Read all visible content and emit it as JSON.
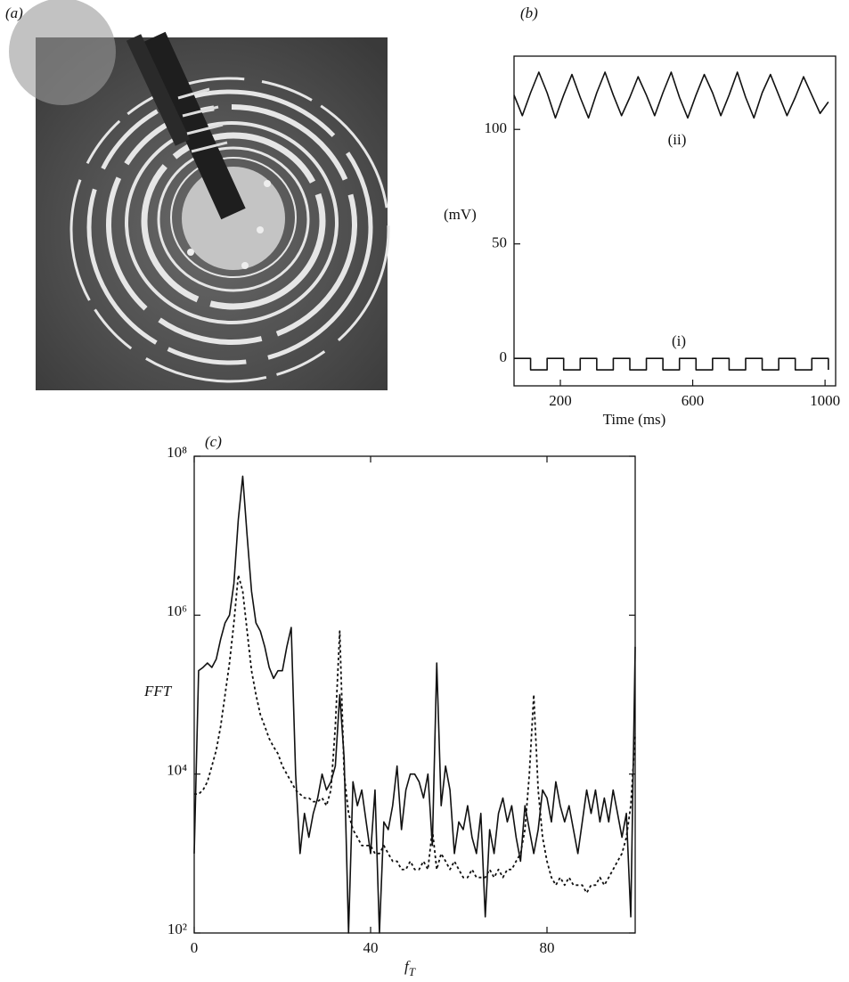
{
  "panel_a": {
    "label": "(a)"
  },
  "chart_data": [
    {
      "type": "line",
      "panel": "(b)",
      "ylabel": "(mV)",
      "xlabel": "Time (ms)",
      "xlim": [
        60,
        1032
      ],
      "ylim": [
        -12,
        132
      ],
      "xticks": [
        200,
        600,
        1000
      ],
      "yticks": [
        0,
        50,
        100
      ],
      "x": [
        60,
        85,
        110,
        135,
        160,
        185,
        210,
        235,
        260,
        285,
        310,
        335,
        360,
        385,
        410,
        435,
        460,
        485,
        510,
        535,
        560,
        585,
        610,
        635,
        660,
        685,
        710,
        735,
        760,
        785,
        810,
        835,
        860,
        885,
        910,
        935,
        960,
        985,
        1010
      ],
      "series": [
        {
          "name": "(i)",
          "color": "#111",
          "style": "solid",
          "step": true,
          "values": [
            0,
            0,
            -5,
            -5,
            0,
            0,
            -5,
            -5,
            0,
            0,
            -5,
            -5,
            0,
            0,
            -5,
            -5,
            0,
            0,
            -5,
            -5,
            0,
            0,
            -5,
            -5,
            0,
            0,
            -5,
            -5,
            0,
            0,
            -5,
            -5,
            0,
            0,
            -5,
            -5,
            0,
            0,
            -5
          ]
        },
        {
          "name": "(ii)",
          "color": "#111",
          "style": "solid",
          "step": false,
          "values": [
            115,
            106,
            116,
            125,
            116,
            105,
            115,
            124,
            114,
            105,
            116,
            125,
            115,
            106,
            114,
            123,
            115,
            106,
            116,
            125,
            114,
            105,
            115,
            124,
            116,
            106,
            115,
            125,
            114,
            105,
            116,
            124,
            115,
            106,
            114,
            123,
            115,
            107,
            112
          ]
        }
      ]
    },
    {
      "type": "line",
      "panel": "(c)",
      "ylabel": "FFT",
      "xlabel": "f",
      "xlabel_subscript": "T",
      "log_y": true,
      "xlim": [
        0,
        100
      ],
      "ylim": [
        100,
        100000000
      ],
      "xticks": [
        0,
        40,
        80
      ],
      "yticks": [
        {
          "value": 100,
          "label": "10²"
        },
        {
          "value": 10000,
          "label": "10⁴"
        },
        {
          "value": 1000000,
          "label": "10⁶"
        },
        {
          "value": 100000000,
          "label": "10⁸"
        }
      ],
      "x": [
        0,
        1,
        2,
        3,
        4,
        5,
        6,
        7,
        8,
        9,
        10,
        11,
        12,
        13,
        14,
        15,
        16,
        17,
        18,
        19,
        20,
        21,
        22,
        23,
        24,
        25,
        26,
        27,
        28,
        29,
        30,
        31,
        32,
        33,
        34,
        35,
        36,
        37,
        38,
        39,
        40,
        41,
        42,
        43,
        44,
        45,
        46,
        47,
        48,
        49,
        50,
        51,
        52,
        53,
        54,
        55,
        56,
        57,
        58,
        59,
        60,
        61,
        62,
        63,
        64,
        65,
        66,
        67,
        68,
        69,
        70,
        71,
        72,
        73,
        74,
        75,
        76,
        77,
        78,
        79,
        80,
        81,
        82,
        83,
        84,
        85,
        86,
        87,
        88,
        89,
        90,
        91,
        92,
        93,
        94,
        95,
        96,
        97,
        98,
        99,
        100
      ],
      "series": [
        {
          "color": "#111",
          "style": "solid",
          "values": [
            1000,
            200000,
            220000,
            250000,
            220000,
            280000,
            500000,
            800000,
            1000000,
            2500000,
            16000000,
            56000000,
            10000000,
            2000000,
            800000,
            630000,
            400000,
            220000,
            160000,
            200000,
            200000,
            400000,
            700000,
            10000,
            1000,
            3200,
            1600,
            3200,
            5000,
            10000,
            6300,
            8000,
            12600,
            100000,
            16000,
            100,
            8000,
            4000,
            6300,
            2500,
            1000,
            6300,
            100,
            2500,
            2000,
            4000,
            12600,
            2000,
            6300,
            10000,
            10000,
            8000,
            5000,
            10000,
            1260,
            250000,
            4000,
            12600,
            6300,
            1000,
            2500,
            2000,
            4000,
            1600,
            1000,
            3200,
            160,
            2000,
            1000,
            3200,
            5000,
            2500,
            4000,
            1600,
            800,
            4000,
            2000,
            1000,
            2000,
            6300,
            5000,
            2500,
            8000,
            4000,
            2500,
            4000,
            2000,
            1000,
            2500,
            6300,
            3200,
            6300,
            2500,
            5000,
            2500,
            6300,
            3200,
            1600,
            3200,
            160,
            400000
          ]
        },
        {
          "color": "#111",
          "style": "dotted",
          "values": [
            5600,
            5600,
            6300,
            8000,
            12600,
            20000,
            40000,
            100000,
            250000,
            800000,
            3200000,
            2000000,
            630000,
            200000,
            100000,
            56000,
            40000,
            28000,
            22000,
            18000,
            12600,
            10000,
            8000,
            6300,
            5600,
            5000,
            5000,
            4500,
            4500,
            5000,
            4000,
            6300,
            40000,
            630000,
            10000,
            3200,
            2000,
            1600,
            1260,
            1260,
            1260,
            1000,
            1000,
            1260,
            1000,
            800,
            800,
            630,
            630,
            800,
            630,
            630,
            800,
            630,
            2000,
            630,
            1000,
            800,
            630,
            800,
            630,
            500,
            500,
            630,
            500,
            500,
            500,
            630,
            500,
            630,
            500,
            630,
            630,
            800,
            1000,
            2000,
            10000,
            100000,
            6300,
            1600,
            800,
            500,
            400,
            500,
            400,
            500,
            400,
            400,
            400,
            320,
            400,
            400,
            500,
            400,
            500,
            630,
            800,
            1000,
            1600,
            4000,
            32000
          ]
        }
      ]
    }
  ]
}
